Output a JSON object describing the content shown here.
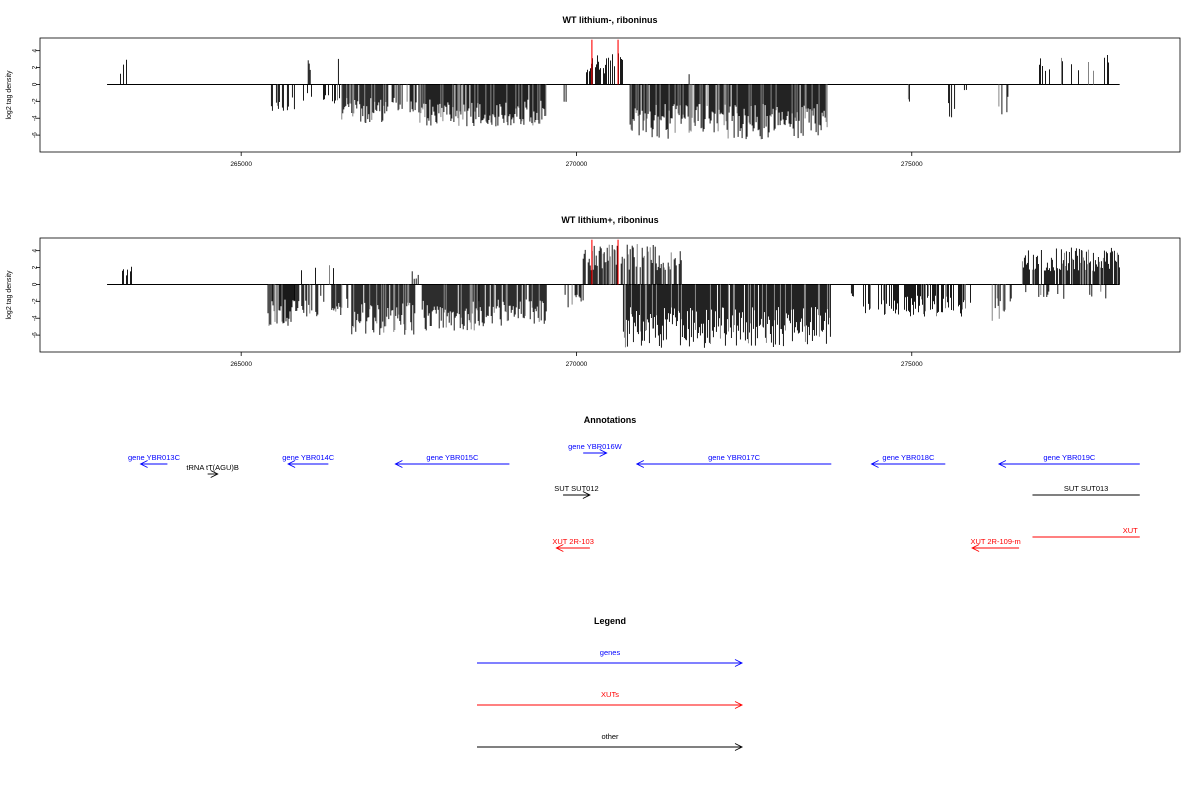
{
  "chart_data": [
    {
      "type": "bar",
      "title": "WT lithium-, riboninus",
      "ylabel": "log2 tag density",
      "x_ticks": [
        265000,
        270000,
        275000
      ],
      "y_ticks": [
        "4",
        "2",
        "0",
        "-2",
        "-4",
        "-6"
      ],
      "xlim": [
        262000,
        279000
      ],
      "ylim": [
        -8,
        5.5
      ],
      "marker_positions": [
        270230,
        270620
      ],
      "marker_color": "#ff0000",
      "bar_color": "#000000",
      "signal_segments": [
        {
          "start": 263200,
          "end": 263300,
          "sign": 1,
          "amp": 3.5,
          "density": 0.3
        },
        {
          "start": 265450,
          "end": 265800,
          "sign": -1,
          "amp": 3.2,
          "density": 0.55
        },
        {
          "start": 265900,
          "end": 266500,
          "sign": -1,
          "amp": 2.4,
          "density": 0.3
        },
        {
          "start": 266000,
          "end": 266050,
          "sign": 1,
          "amp": 3.0,
          "density": 0.5
        },
        {
          "start": 266330,
          "end": 266450,
          "sign": 1,
          "amp": 4.0,
          "density": 0.35
        },
        {
          "start": 266500,
          "end": 267200,
          "sign": -1,
          "amp": 4.6,
          "density": 0.95
        },
        {
          "start": 267250,
          "end": 267650,
          "sign": -1,
          "amp": 3.3,
          "density": 0.55
        },
        {
          "start": 267650,
          "end": 269550,
          "sign": -1,
          "amp": 5.0,
          "density": 0.95
        },
        {
          "start": 269800,
          "end": 269860,
          "sign": -1,
          "amp": 3.0,
          "density": 0.5
        },
        {
          "start": 270150,
          "end": 270700,
          "sign": 1,
          "amp": 3.7,
          "density": 0.65
        },
        {
          "start": 270800,
          "end": 273750,
          "sign": -1,
          "amp": 6.5,
          "density": 0.95
        },
        {
          "start": 271680,
          "end": 271720,
          "sign": 1,
          "amp": 2.7,
          "density": 0.6
        },
        {
          "start": 274950,
          "end": 275050,
          "sign": -1,
          "amp": 2.5,
          "density": 0.4
        },
        {
          "start": 275550,
          "end": 275650,
          "sign": -1,
          "amp": 4.0,
          "density": 0.3
        },
        {
          "start": 275770,
          "end": 275820,
          "sign": -1,
          "amp": 1.0,
          "density": 0.5
        },
        {
          "start": 276300,
          "end": 276450,
          "sign": -1,
          "amp": 3.6,
          "density": 0.45
        },
        {
          "start": 276800,
          "end": 277950,
          "sign": 1,
          "amp": 3.5,
          "density": 0.2
        }
      ]
    },
    {
      "type": "bar",
      "title": "WT lithium+, riboninus",
      "ylabel": "log2 tag density",
      "x_ticks": [
        265000,
        270000,
        275000
      ],
      "y_ticks": [
        "4",
        "2",
        "0",
        "-2",
        "-4",
        "-6"
      ],
      "xlim": [
        262000,
        279000
      ],
      "ylim": [
        -8,
        5.5
      ],
      "marker_positions": [
        270230,
        270620
      ],
      "marker_color": "#ff0000",
      "bar_color": "#000000",
      "signal_segments": [
        {
          "start": 263200,
          "end": 263380,
          "sign": 1,
          "amp": 2.2,
          "density": 0.35
        },
        {
          "start": 265400,
          "end": 265800,
          "sign": -1,
          "amp": 5.0,
          "density": 0.85
        },
        {
          "start": 265750,
          "end": 266400,
          "sign": 1,
          "amp": 2.5,
          "density": 0.25
        },
        {
          "start": 265800,
          "end": 266600,
          "sign": -1,
          "amp": 3.8,
          "density": 0.6
        },
        {
          "start": 266650,
          "end": 267600,
          "sign": -1,
          "amp": 6.0,
          "density": 0.95
        },
        {
          "start": 267550,
          "end": 267650,
          "sign": 1,
          "amp": 1.8,
          "density": 0.5
        },
        {
          "start": 267700,
          "end": 268550,
          "sign": -1,
          "amp": 5.5,
          "density": 0.95
        },
        {
          "start": 268550,
          "end": 269550,
          "sign": -1,
          "amp": 5.0,
          "density": 0.9
        },
        {
          "start": 269800,
          "end": 270100,
          "sign": -1,
          "amp": 3.0,
          "density": 0.5
        },
        {
          "start": 270100,
          "end": 271600,
          "sign": 1,
          "amp": 4.8,
          "density": 0.75
        },
        {
          "start": 270700,
          "end": 273800,
          "sign": -1,
          "amp": 7.5,
          "density": 0.98
        },
        {
          "start": 274100,
          "end": 274180,
          "sign": -1,
          "amp": 2.0,
          "density": 0.5
        },
        {
          "start": 274250,
          "end": 275900,
          "sign": -1,
          "amp": 3.8,
          "density": 0.6
        },
        {
          "start": 276200,
          "end": 276500,
          "sign": -1,
          "amp": 4.5,
          "density": 0.6
        },
        {
          "start": 276650,
          "end": 278100,
          "sign": 1,
          "amp": 4.4,
          "density": 0.9
        },
        {
          "start": 276700,
          "end": 278000,
          "sign": -1,
          "amp": 1.8,
          "density": 0.2
        }
      ]
    }
  ],
  "annotations": {
    "title": "Annotations",
    "features": [
      {
        "label": "gene YBR013C",
        "class": "gene",
        "start": 263500,
        "end": 263900,
        "dir": "left",
        "row": 1
      },
      {
        "label": "gene YBR014C",
        "class": "gene",
        "start": 265700,
        "end": 266300,
        "dir": "left",
        "row": 1
      },
      {
        "label": "gene YBR015C",
        "class": "gene",
        "start": 267300,
        "end": 269000,
        "dir": "left",
        "row": 1
      },
      {
        "label": "gene YBR016W",
        "class": "gene",
        "start": 270100,
        "end": 270450,
        "dir": "right",
        "row": 0
      },
      {
        "label": "gene YBR017C",
        "class": "gene",
        "start": 270900,
        "end": 273800,
        "dir": "left",
        "row": 1
      },
      {
        "label": "gene YBR018C",
        "class": "gene",
        "start": 274400,
        "end": 275500,
        "dir": "left",
        "row": 1
      },
      {
        "label": "gene YBR019C",
        "class": "gene",
        "start": 276300,
        "end": 278400,
        "dir": "left",
        "row": 1
      },
      {
        "label": "tRNA tT(AGU)B",
        "class": "other",
        "start": 264500,
        "end": 264650,
        "dir": "right",
        "row": 2
      },
      {
        "label": "SUT SUT012",
        "class": "other",
        "start": 269800,
        "end": 270200,
        "dir": "right",
        "row": 3
      },
      {
        "label": "SUT SUT013",
        "class": "other",
        "start": 276800,
        "end": 278400,
        "dir": "none",
        "row": 3
      },
      {
        "label": "XUT 2R-103",
        "class": "xut",
        "start": 269700,
        "end": 270200,
        "dir": "left",
        "row": 4
      },
      {
        "label": "XUT 2R-109-m",
        "class": "xut",
        "start": 275900,
        "end": 276600,
        "dir": "left",
        "row": 4
      },
      {
        "label": "XUT",
        "class": "xut",
        "start": 276800,
        "end": 278400,
        "dir": "none",
        "row": 5
      }
    ]
  },
  "legend": {
    "title": "Legend",
    "items": [
      {
        "label": "genes",
        "class": "gene"
      },
      {
        "label": "XUTs",
        "class": "xut"
      },
      {
        "label": "other",
        "class": "other"
      }
    ]
  },
  "colors": {
    "gene": "#0000ff",
    "xut": "#ff0000",
    "other": "#000000"
  }
}
